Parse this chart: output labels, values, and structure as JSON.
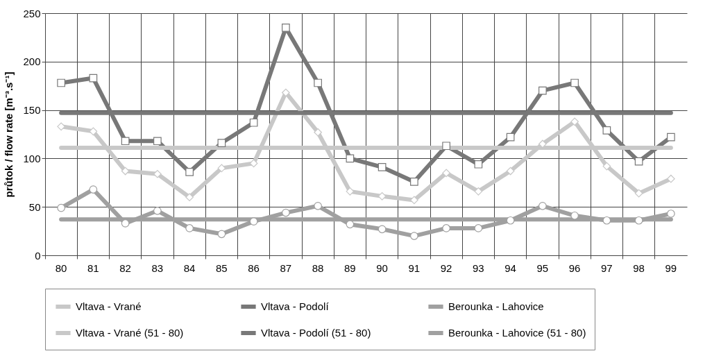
{
  "chart_data": {
    "type": "line",
    "ylabel": "průtok / flow rate [m⁻³.s⁻¹]",
    "categories": [
      "80",
      "81",
      "82",
      "83",
      "84",
      "85",
      "86",
      "87",
      "88",
      "89",
      "90",
      "91",
      "92",
      "93",
      "94",
      "95",
      "96",
      "97",
      "98",
      "99"
    ],
    "ylim": [
      0,
      250
    ],
    "yticks": [
      0,
      50,
      100,
      150,
      200,
      250
    ],
    "grid": true,
    "legend": "bottom",
    "line_style": "solid",
    "series": [
      {
        "name": "Vltava - Vrané",
        "color": "#c8c8c8",
        "marker": "diamond",
        "values": [
          133,
          128,
          87,
          84,
          60,
          90,
          95,
          168,
          127,
          66,
          61,
          57,
          85,
          66,
          87,
          115,
          138,
          92,
          64,
          79
        ]
      },
      {
        "name": "Vltava - Podolí",
        "color": "#787878",
        "marker": "square",
        "values": [
          178,
          183,
          118,
          118,
          86,
          116,
          137,
          235,
          178,
          100,
          91,
          76,
          113,
          94,
          122,
          170,
          178,
          129,
          97,
          122
        ]
      },
      {
        "name": "Berounka - Lahovice",
        "color": "#a0a0a0",
        "marker": "circle",
        "values": [
          49,
          68,
          33,
          46,
          28,
          22,
          35,
          44,
          51,
          32,
          27,
          20,
          28,
          28,
          36,
          51,
          41,
          36,
          36,
          43
        ]
      },
      {
        "name": "Vltava - Vrané (51 - 80)",
        "color": "#c8c8c8",
        "marker": "none",
        "values": [
          111,
          111,
          111,
          111,
          111,
          111,
          111,
          111,
          111,
          111,
          111,
          111,
          111,
          111,
          111,
          111,
          111,
          111,
          111,
          111
        ]
      },
      {
        "name": "Vltava - Podolí (51 - 80)",
        "color": "#787878",
        "marker": "none",
        "values": [
          147,
          147,
          147,
          147,
          147,
          147,
          147,
          147,
          147,
          147,
          147,
          147,
          147,
          147,
          147,
          147,
          147,
          147,
          147,
          147
        ]
      },
      {
        "name": "Berounka - Lahovice (51 - 80)",
        "color": "#a0a0a0",
        "marker": "none",
        "values": [
          37,
          37,
          37,
          37,
          37,
          37,
          37,
          37,
          37,
          37,
          37,
          37,
          37,
          37,
          37,
          37,
          37,
          37,
          37,
          37
        ]
      }
    ]
  }
}
